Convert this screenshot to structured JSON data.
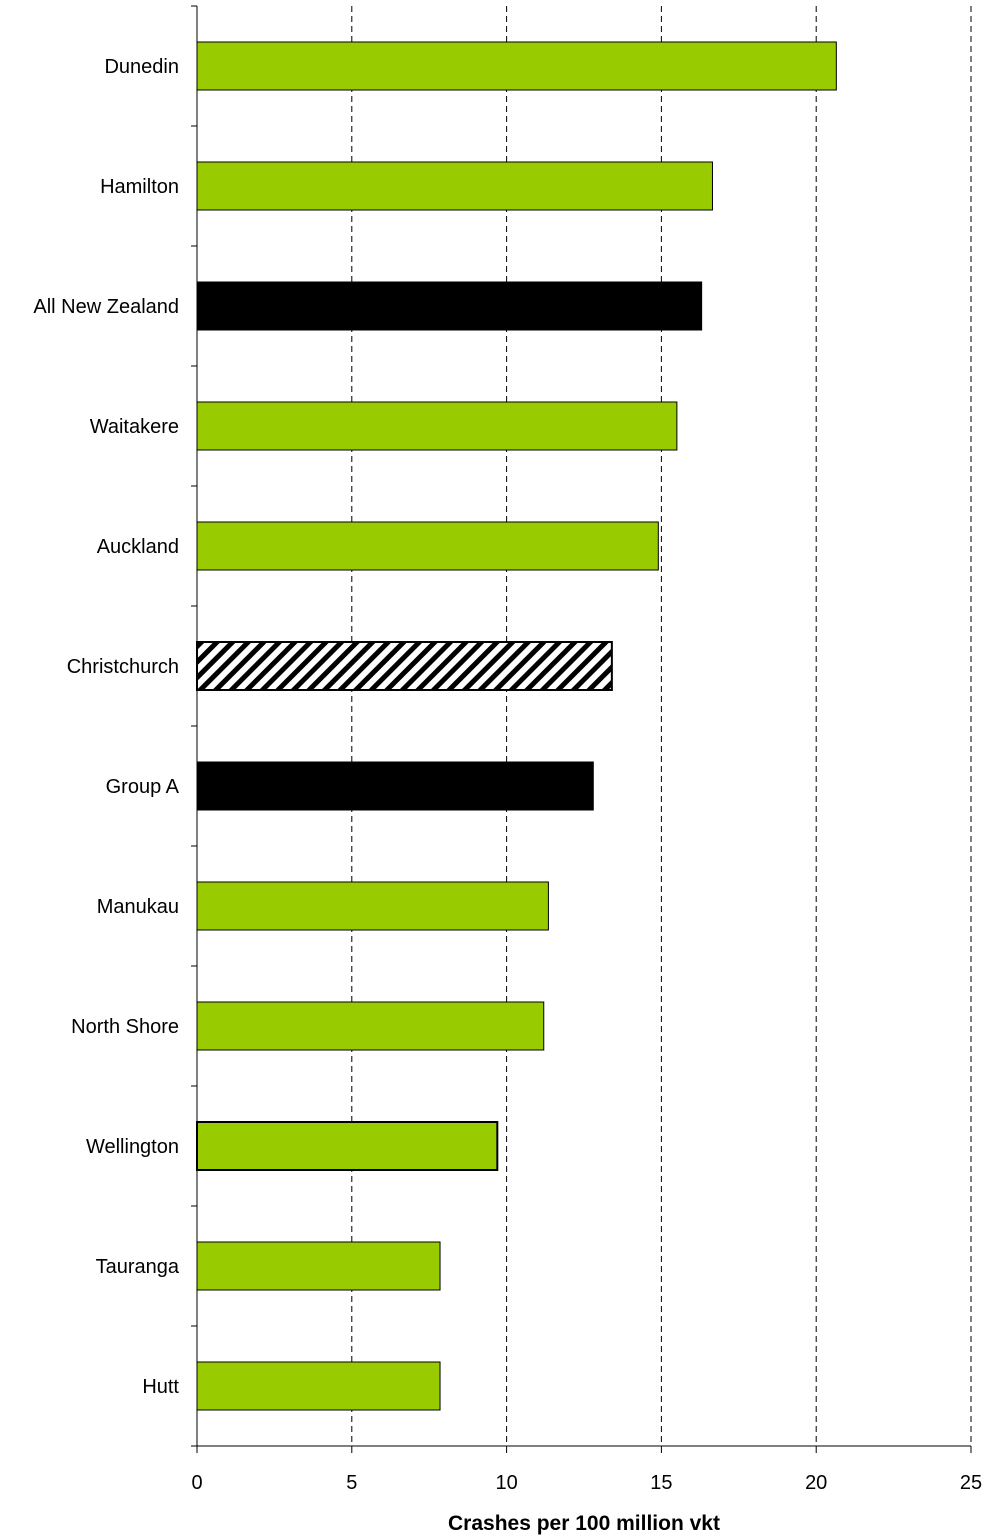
{
  "chart_data": {
    "type": "bar",
    "orientation": "horizontal",
    "title": "",
    "xlabel": "Crashes per 100 million vkt",
    "ylabel": "",
    "xlim": [
      0,
      25
    ],
    "xticks": [
      0,
      5,
      10,
      15,
      20,
      25
    ],
    "grid": "vertical dashed at x ticks",
    "legend": "none",
    "categories": [
      "Dunedin",
      "Hamilton",
      "All New Zealand",
      "Waitakere",
      "Auckland",
      "Christchurch",
      "Group A",
      "Manukau",
      "North Shore",
      "Wellington",
      "Tauranga",
      "Hutt"
    ],
    "values": [
      20.65,
      16.65,
      16.3,
      15.5,
      14.9,
      13.4,
      12.8,
      11.35,
      11.2,
      9.7,
      7.85,
      7.85
    ],
    "styles": [
      "green",
      "green",
      "black",
      "green",
      "green",
      "hatched",
      "black",
      "green",
      "green",
      "green-bold",
      "green",
      "green"
    ],
    "colors": {
      "green": "#99CC00",
      "black": "#000000",
      "hatch_background": "#ffffff",
      "hatch_lines": "#000000"
    }
  }
}
